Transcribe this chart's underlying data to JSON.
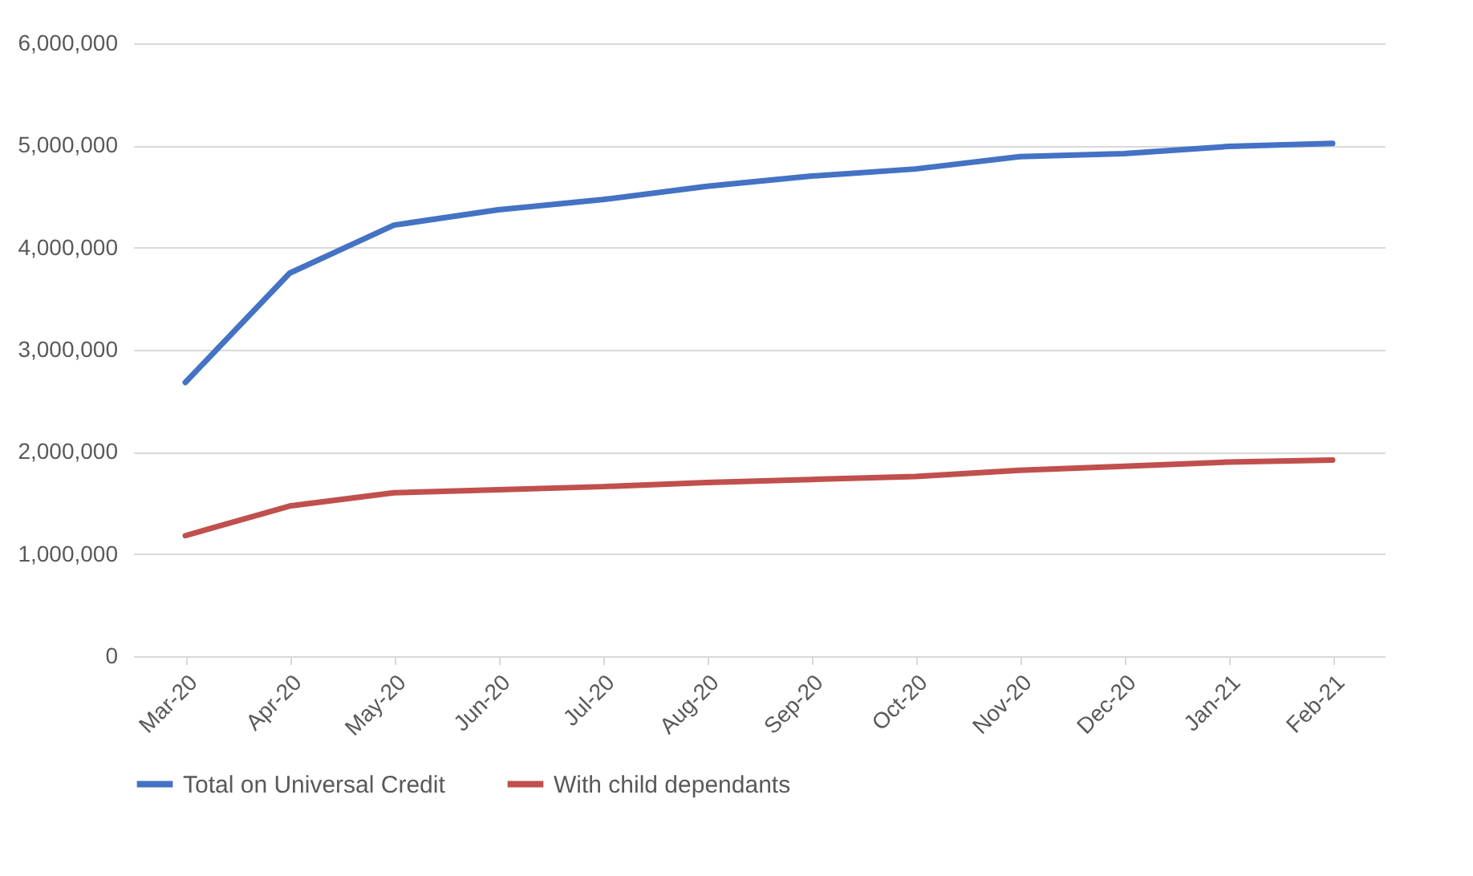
{
  "chart_data": {
    "type": "line",
    "categories": [
      "Mar-20",
      "Apr-20",
      "May-20",
      "Jun-20",
      "Jul-20",
      "Aug-20",
      "Sep-20",
      "Oct-20",
      "Nov-20",
      "Dec-20",
      "Jan-21",
      "Feb-21"
    ],
    "series": [
      {
        "name": "Total on Universal Credit",
        "color": "#4472c4",
        "values": [
          2680000,
          3750000,
          4220000,
          4370000,
          4470000,
          4600000,
          4700000,
          4770000,
          4890000,
          4920000,
          4990000,
          5020000
        ]
      },
      {
        "name": "With child dependants",
        "color": "#c0504d",
        "values": [
          1180000,
          1470000,
          1600000,
          1630000,
          1660000,
          1700000,
          1730000,
          1760000,
          1820000,
          1860000,
          1900000,
          1920000
        ]
      }
    ],
    "ylim": [
      0,
      6000000
    ],
    "yticks": [
      0,
      {
        "value": 1000000,
        "label": "1,000,000"
      },
      {
        "value": 2000000,
        "label": "2,000,000"
      },
      {
        "value": 3000000,
        "label": "3,000,000"
      },
      {
        "value": 4000000,
        "label": "4,000,000"
      },
      {
        "value": 5000000,
        "label": "5,000,000"
      },
      {
        "value": 6000000,
        "label": "6,000,000"
      }
    ],
    "grid": "y",
    "legend": "bottom",
    "marker": "none",
    "line_style": "solid"
  }
}
